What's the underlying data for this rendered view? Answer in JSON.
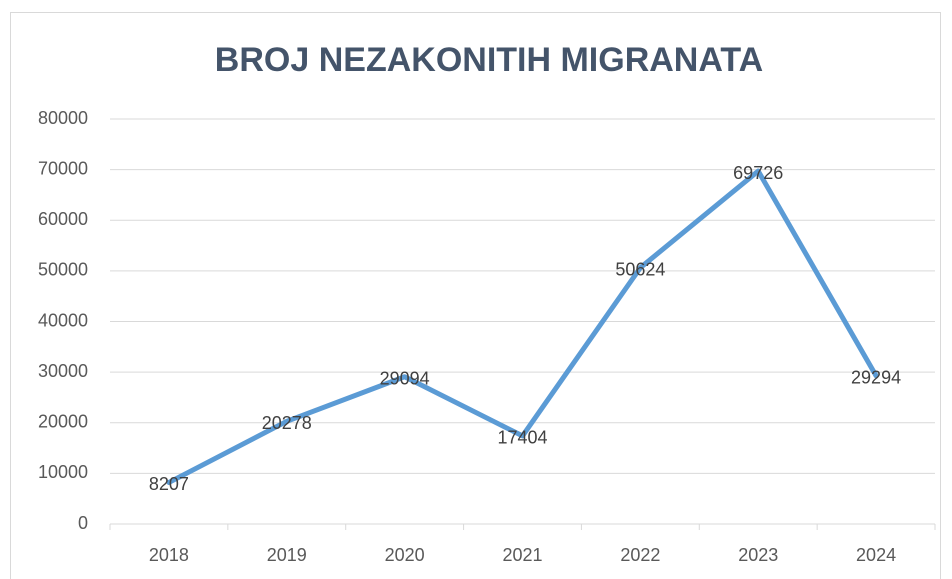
{
  "chart_data": {
    "type": "line",
    "title": "BROJ NEZAKONITIH MIGRANATA",
    "categories": [
      "2018",
      "2019",
      "2020",
      "2021",
      "2022",
      "2023",
      "2024"
    ],
    "values": [
      8207,
      20278,
      29094,
      17404,
      50624,
      69726,
      29294
    ],
    "color": "#5b9bd5",
    "ylim": [
      0,
      80000
    ],
    "yticks": [
      0,
      10000,
      20000,
      30000,
      40000,
      50000,
      60000,
      70000,
      80000
    ],
    "grid": true,
    "data_labels": true
  }
}
